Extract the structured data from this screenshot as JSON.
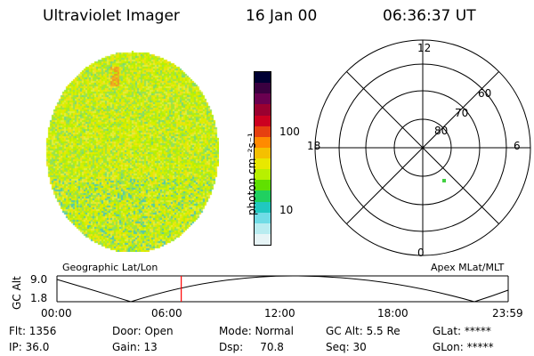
{
  "header": {
    "title": "Ultraviolet Imager",
    "date": "16 Jan 00",
    "time": "06:36:37 UT"
  },
  "colorbar": {
    "unit_label": "photon cm⁻²s⁻¹",
    "tick_labels": [
      "100",
      "10"
    ],
    "colors": [
      "#000033",
      "#3a0040",
      "#6a0050",
      "#9a0030",
      "#cc0020",
      "#e64010",
      "#ff8a00",
      "#f5c000",
      "#e8e800",
      "#b8f000",
      "#60e000",
      "#20d060",
      "#20c8c0",
      "#70dce6",
      "#b8ecf0",
      "#e6f4f6"
    ]
  },
  "polar_plot": {
    "clock_labels": {
      "top": "12",
      "left": "18",
      "right": "6",
      "bottom": "0"
    },
    "ring_labels": [
      "60",
      "70",
      "80"
    ]
  },
  "altitude_plot": {
    "left_label": "Geographic Lat/Lon",
    "right_label": "Apex MLat/MLT",
    "y_axis_label": "GC Alt",
    "y_ticks": [
      "9.0",
      "1.8"
    ],
    "x_ticks": [
      "00:00",
      "06:00",
      "12:00",
      "18:00",
      "23:59"
    ],
    "current_time_hours": 6.61,
    "marker_color": "#ff0000"
  },
  "info": {
    "row1": {
      "flt": "Flt: 1356",
      "door": "Door: Open",
      "mode": "Mode: Normal",
      "gcalt": "GC Alt: 5.5 Re",
      "glat": "GLat: *****"
    },
    "row2": {
      "ip": "IP: 36.0",
      "gain": "Gain: 13",
      "dsp": "Dsp:     70.8",
      "seq": "Seq: 30",
      "glon": "GLon: *****"
    }
  }
}
